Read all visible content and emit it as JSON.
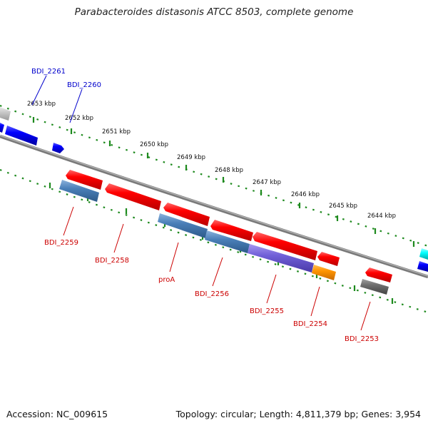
{
  "title": "Parabacteroides distasonis ATCC 8503, complete genome",
  "footer": {
    "accession": "Accession: NC_009615",
    "summary": "Topology: circular; Length: 4,811,379 bp; Genes: 3,954"
  },
  "colors": {
    "backbone": "#7a7a7a",
    "tick": "#1e8a1e",
    "forward_label": "#0000cc",
    "reverse_label": "#cc0000"
  },
  "kbp_labels": [
    "2653 kbp",
    "2652 kbp",
    "2651 kbp",
    "2650 kbp",
    "2649 kbp",
    "2648 kbp",
    "2647 kbp",
    "2646 kbp",
    "2645 kbp",
    "2644 kbp"
  ],
  "genes_forward_labels": [
    {
      "name": "BDI_2261",
      "color": "#0000cc"
    },
    {
      "name": "BDI_2260",
      "color": "#0000cc"
    }
  ],
  "genes_reverse_labels": [
    {
      "name": "BDI_2259",
      "color": "#cc0000"
    },
    {
      "name": "BDI_2258",
      "color": "#cc0000"
    },
    {
      "name": "proA",
      "color": "#cc0000"
    },
    {
      "name": "BDI_2256",
      "color": "#cc0000"
    },
    {
      "name": "BDI_2255",
      "color": "#cc0000"
    },
    {
      "name": "BDI_2254",
      "color": "#cc0000"
    },
    {
      "name": "BDI_2253",
      "color": "#cc0000"
    }
  ]
}
